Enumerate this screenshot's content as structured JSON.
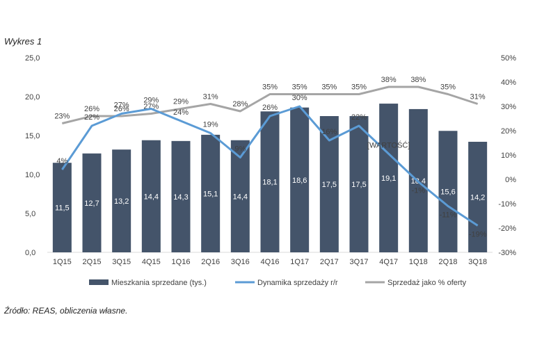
{
  "title": "Wykres 1",
  "source": "Źródło: REAS, obliczenia własne.",
  "chart_data": {
    "type": "bar",
    "categories": [
      "1Q15",
      "2Q15",
      "3Q15",
      "4Q15",
      "1Q16",
      "2Q16",
      "3Q16",
      "4Q16",
      "1Q17",
      "2Q17",
      "3Q17",
      "4Q17",
      "1Q18",
      "2Q18",
      "3Q18"
    ],
    "series": [
      {
        "name": "Mieszkania sprzedane (tys.)",
        "type": "bar",
        "axis": "left",
        "color": "#44546a",
        "values": [
          11.5,
          12.7,
          13.2,
          14.4,
          14.3,
          15.1,
          14.4,
          18.1,
          18.6,
          17.5,
          17.5,
          19.1,
          18.4,
          15.6,
          14.2
        ],
        "labels": [
          "11,5",
          "12,7",
          "13,2",
          "14,4",
          "14,3",
          "15,1",
          "14,4",
          "18,1",
          "18,6",
          "17,5",
          "17,5",
          "19,1",
          "18,4",
          "15,6",
          "14,2"
        ]
      },
      {
        "name": "Dynamika sprzedaży r/r",
        "type": "line",
        "axis": "right",
        "color": "#5b9bd5",
        "values": [
          4,
          22,
          27,
          29,
          24,
          19,
          9,
          26,
          30,
          16,
          22,
          null,
          -1,
          -11,
          -19
        ],
        "labels": [
          "4%",
          "22%",
          "27%",
          "29%",
          "24%",
          "19%",
          "9%",
          "26%",
          "30%",
          "16%",
          "22%",
          "[WARTOŚĆ]",
          "-1%",
          "-11%",
          "-19%"
        ]
      },
      {
        "name": "Sprzedaż jako % oferty",
        "type": "line",
        "axis": "right",
        "color": "#a5a5a5",
        "values": [
          23,
          26,
          26,
          27,
          29,
          31,
          28,
          35,
          35,
          35,
          35,
          38,
          38,
          35,
          31
        ],
        "labels": [
          "23%",
          "26%",
          "26%",
          "27%",
          "29%",
          "31%",
          "28%",
          "35%",
          "35%",
          "35%",
          "35%",
          "38%",
          "38%",
          "35%",
          "31%"
        ]
      }
    ],
    "y_left": {
      "ylim": [
        0,
        25
      ],
      "ticks": [
        "0,0",
        "5,0",
        "10,0",
        "15,0",
        "20,0",
        "25,0"
      ]
    },
    "y_right": {
      "ylim": [
        -30,
        50
      ],
      "ticks": [
        "-30%",
        "-20%",
        "-10%",
        "0%",
        "10%",
        "20%",
        "30%",
        "40%",
        "50%"
      ]
    },
    "legend_position": "bottom",
    "grid": false
  }
}
